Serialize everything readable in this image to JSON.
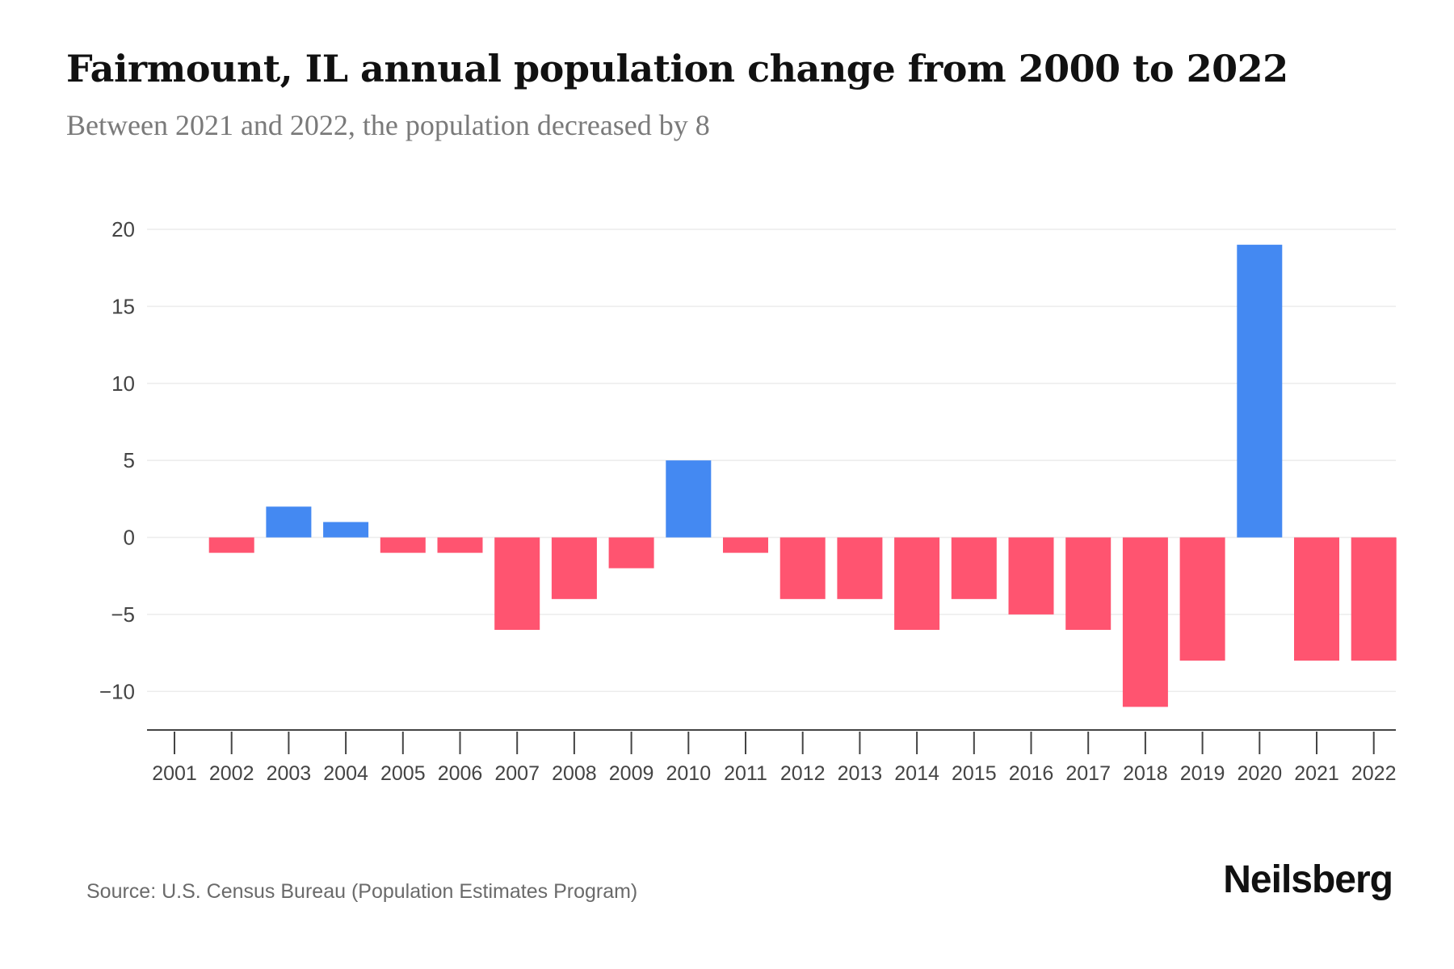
{
  "header": {
    "title": "Fairmount, IL annual population change from 2000 to 2022",
    "subtitle": "Between 2021 and 2022, the population decreased by 8"
  },
  "footer": {
    "source": "Source: U.S. Census Bureau (Population Estimates Program)",
    "brand": "Neilsberg"
  },
  "colors": {
    "positive": "#4489f2",
    "negative": "#ff5470",
    "grid": "#ececec",
    "axis": "#444444"
  },
  "chart_data": {
    "type": "bar",
    "title": "Fairmount, IL annual population change from 2000 to 2022",
    "xlabel": "",
    "ylabel": "",
    "categories": [
      "2001",
      "2002",
      "2003",
      "2004",
      "2005",
      "2006",
      "2007",
      "2008",
      "2009",
      "2010",
      "2011",
      "2012",
      "2013",
      "2014",
      "2015",
      "2016",
      "2017",
      "2018",
      "2019",
      "2020",
      "2021",
      "2022"
    ],
    "values": [
      0,
      -1,
      2,
      1,
      -1,
      -1,
      -6,
      -4,
      -2,
      5,
      -1,
      -4,
      -4,
      -6,
      -4,
      -5,
      -6,
      -11,
      -8,
      19,
      -8,
      -8
    ],
    "ylim": [
      -12.5,
      20
    ],
    "yticks": [
      20,
      15,
      10,
      5,
      0,
      -5,
      -10
    ],
    "ytick_labels": [
      "20",
      "15",
      "10",
      "5",
      "0",
      "−5",
      "−10"
    ],
    "grid": true
  }
}
